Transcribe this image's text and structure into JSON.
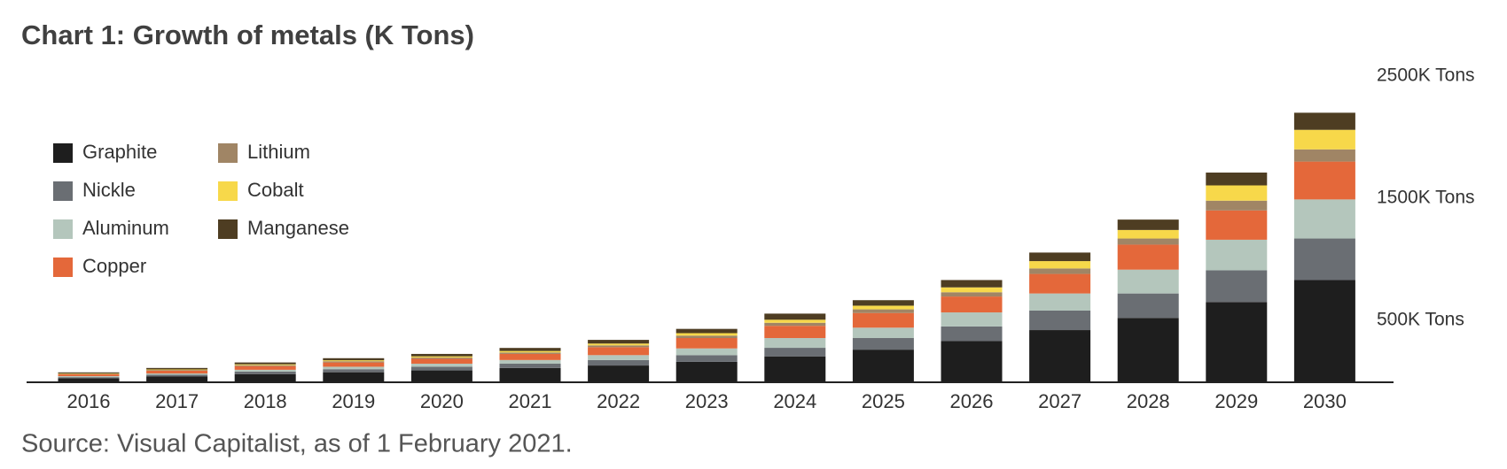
{
  "chart_data": {
    "type": "stacked_bar",
    "title": "Chart 1: Growth of metals (K Tons)",
    "source": "Source: Visual Capitalist, as of 1 February 2021.",
    "categories": [
      "2016",
      "2017",
      "2018",
      "2019",
      "2020",
      "2021",
      "2022",
      "2023",
      "2024",
      "2025",
      "2026",
      "2027",
      "2028",
      "2029",
      "2030"
    ],
    "series": [
      {
        "name": "Graphite",
        "color": "#1e1e1e",
        "values": [
          25,
          40,
          60,
          75,
          90,
          110,
          130,
          160,
          205,
          260,
          330,
          420,
          520,
          650,
          830
        ]
      },
      {
        "name": "Nickle",
        "color": "#6a6e73",
        "values": [
          10,
          15,
          20,
          25,
          30,
          35,
          45,
          55,
          70,
          95,
          120,
          160,
          200,
          260,
          340
        ]
      },
      {
        "name": "Aluminum",
        "color": "#b4c6bc",
        "values": [
          8,
          10,
          15,
          20,
          25,
          30,
          40,
          55,
          80,
          85,
          115,
          140,
          195,
          250,
          320
        ]
      },
      {
        "name": "Copper",
        "color": "#e4683a",
        "values": [
          15,
          22,
          30,
          35,
          40,
          50,
          65,
          85,
          100,
          120,
          130,
          160,
          205,
          240,
          310
        ]
      },
      {
        "name": "Lithium",
        "color": "#a08565",
        "values": [
          4,
          6,
          8,
          10,
          10,
          12,
          15,
          20,
          25,
          30,
          35,
          45,
          50,
          80,
          100
        ]
      },
      {
        "name": "Cobalt",
        "color": "#f7d84a",
        "values": [
          4,
          5,
          7,
          8,
          10,
          12,
          15,
          20,
          25,
          30,
          40,
          60,
          70,
          125,
          160
        ]
      },
      {
        "name": "Manganese",
        "color": "#4e3d22",
        "values": [
          8,
          12,
          15,
          17,
          20,
          25,
          30,
          35,
          50,
          45,
          60,
          70,
          85,
          105,
          140
        ]
      }
    ],
    "ylim": [
      0,
      2500
    ],
    "yticks": [
      {
        "value": 500,
        "label": "500K Tons"
      },
      {
        "value": 1500,
        "label": "1500K Tons"
      },
      {
        "value": 2500,
        "label": "2500K Tons"
      }
    ],
    "grid": false
  }
}
